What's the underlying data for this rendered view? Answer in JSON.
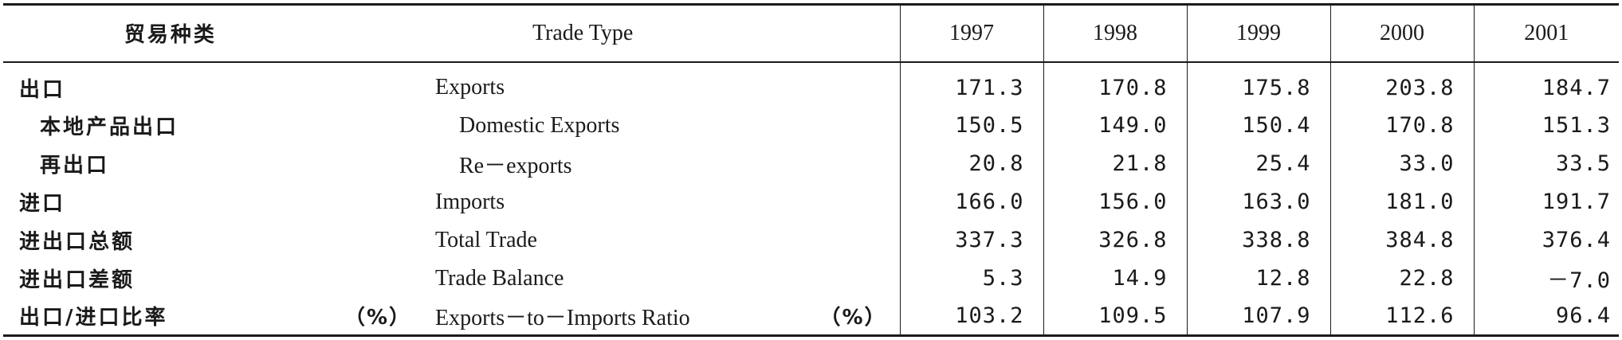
{
  "header": {
    "cn": "贸易种类",
    "en": "Trade Type",
    "years": [
      "1997",
      "1998",
      "1999",
      "2000",
      "2001"
    ]
  },
  "rows": [
    {
      "cn": "出口",
      "en": "Exports",
      "unit_cn": "",
      "unit_en": "",
      "indent": false,
      "values": [
        "171.3",
        "170.8",
        "175.8",
        "203.8",
        "184.7"
      ]
    },
    {
      "cn": "本地产品出口",
      "en": "Domestic Exports",
      "unit_cn": "",
      "unit_en": "",
      "indent": true,
      "values": [
        "150.5",
        "149.0",
        "150.4",
        "170.8",
        "151.3"
      ]
    },
    {
      "cn": "再出口",
      "en": "Re－exports",
      "unit_cn": "",
      "unit_en": "",
      "indent": true,
      "values": [
        "20.8",
        "21.8",
        "25.4",
        "33.0",
        "33.5"
      ]
    },
    {
      "cn": "进口",
      "en": "Imports",
      "unit_cn": "",
      "unit_en": "",
      "indent": false,
      "values": [
        "166.0",
        "156.0",
        "163.0",
        "181.0",
        "191.7"
      ]
    },
    {
      "cn": "进出口总额",
      "en": "Total Trade",
      "unit_cn": "",
      "unit_en": "",
      "indent": false,
      "values": [
        "337.3",
        "326.8",
        "338.8",
        "384.8",
        "376.4"
      ]
    },
    {
      "cn": "进出口差额",
      "en": "Trade Balance",
      "unit_cn": "",
      "unit_en": "",
      "indent": false,
      "values": [
        "5.3",
        "14.9",
        "12.8",
        "22.8",
        "－7.0"
      ]
    },
    {
      "cn": "出口/进口比率",
      "en": "Exports－to－Imports Ratio",
      "unit_cn": "（%）",
      "unit_en": "（%）",
      "indent": false,
      "values": [
        "103.2",
        "109.5",
        "107.9",
        "112.6",
        "96.4"
      ]
    }
  ]
}
